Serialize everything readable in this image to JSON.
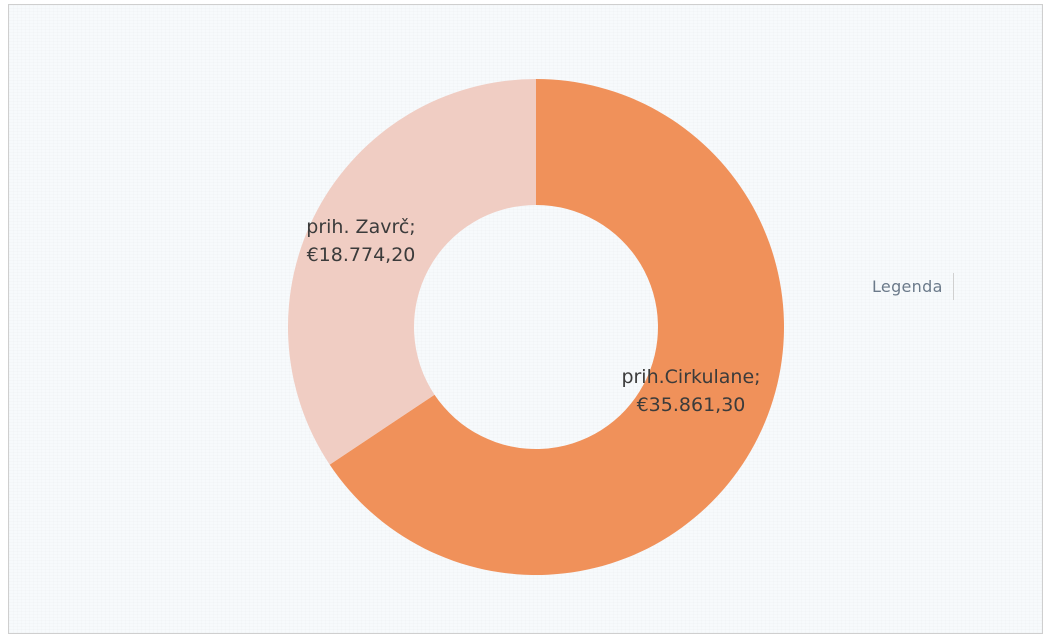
{
  "chart_data": {
    "type": "pie",
    "variant": "donut",
    "categories": [
      "prih.Cirkulane",
      "prih. Zavrč"
    ],
    "values": [
      35861.3,
      18774.2
    ],
    "value_labels": [
      "€35.861,30",
      "€18.774,20"
    ],
    "colors": [
      "#f0915a",
      "#f0cdc3"
    ],
    "legend": {
      "title": "Legenda",
      "position": "right"
    },
    "title": ""
  }
}
